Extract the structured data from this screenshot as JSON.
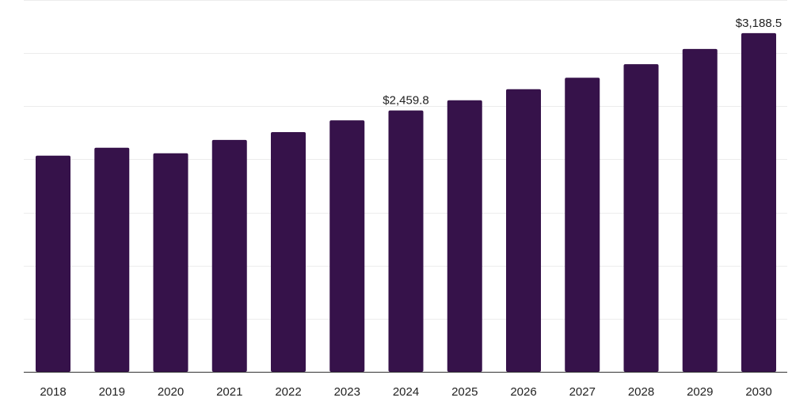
{
  "chart_data": {
    "type": "bar",
    "title": "",
    "xlabel": "",
    "ylabel": "",
    "categories": [
      "2018",
      "2019",
      "2020",
      "2021",
      "2022",
      "2023",
      "2024",
      "2025",
      "2026",
      "2027",
      "2028",
      "2029",
      "2030"
    ],
    "values": [
      2035,
      2109,
      2057,
      2183,
      2256,
      2367,
      2459.8,
      2556,
      2660,
      2768,
      2896,
      3039,
      3188.5
    ],
    "data_labels": [
      {
        "category": "2024",
        "text": "$2,459.8"
      },
      {
        "category": "2030",
        "text": "$3,188.5"
      }
    ],
    "ylim": [
      0,
      3500
    ],
    "grid": true,
    "y_tick_labels_visible": false,
    "colors": {
      "bar": "#36124a",
      "grid": "#ececec",
      "axis": "#333333",
      "text": "#222222"
    }
  }
}
